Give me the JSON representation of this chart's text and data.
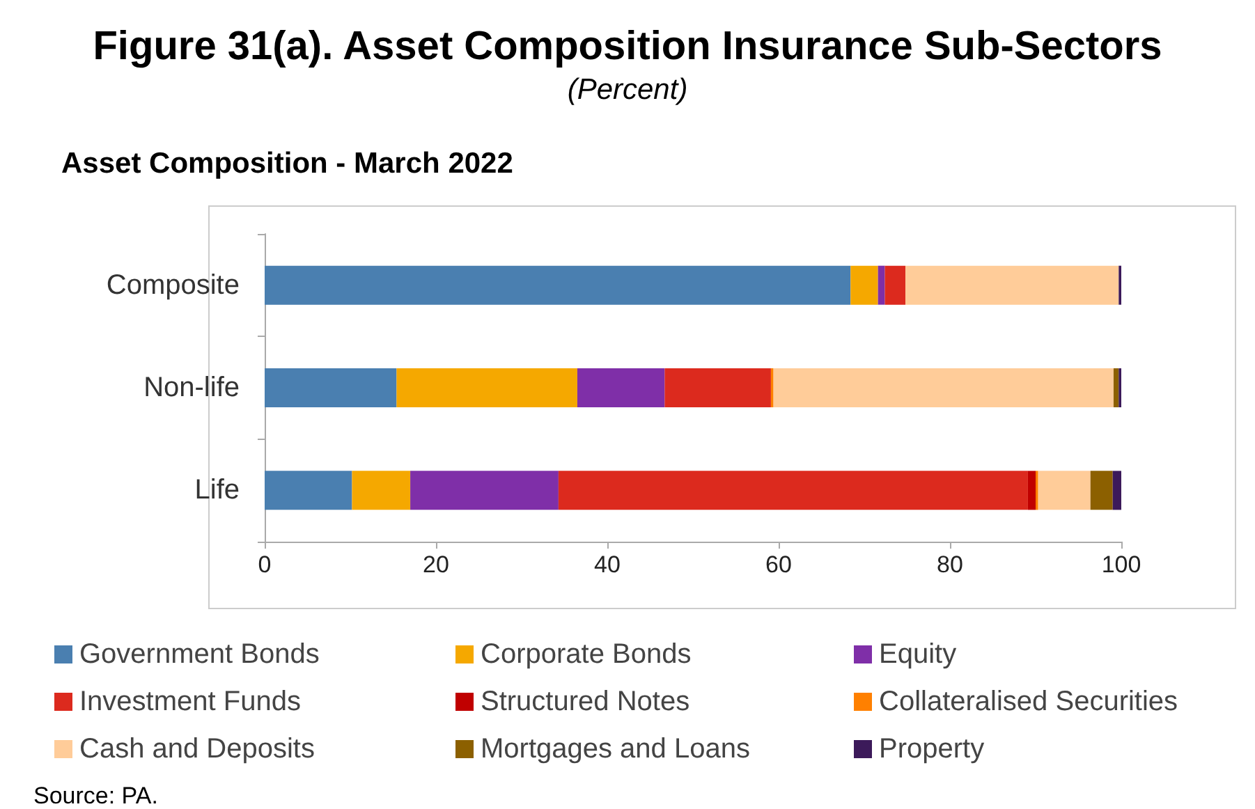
{
  "chart_data": {
    "type": "bar",
    "orientation": "horizontal",
    "stacked": true,
    "title": "Figure 31(a). Asset Composition Insurance Sub-Sectors",
    "subtitle": "(Percent)",
    "annotations": [
      "Asset Composition - March 2022",
      "Source: PA."
    ],
    "categories": [
      "Composite",
      "Non-life",
      "Life"
    ],
    "series": [
      {
        "name": "Government Bonds",
        "color": "#4a7fb0",
        "values": [
          68.4,
          15.4,
          10.2
        ]
      },
      {
        "name": "Corporate Bonds",
        "color": "#f5a800",
        "values": [
          3.2,
          21.1,
          6.8
        ]
      },
      {
        "name": "Equity",
        "color": "#7f2fa8",
        "values": [
          0.8,
          10.2,
          17.3
        ]
      },
      {
        "name": "Investment Funds",
        "color": "#dc2a1e",
        "values": [
          2.4,
          12.4,
          54.8
        ]
      },
      {
        "name": "Structured Notes",
        "color": "#c00000",
        "values": [
          0,
          0,
          0.9
        ]
      },
      {
        "name": "Collateralised Securities",
        "color": "#ff8000",
        "values": [
          0,
          0.3,
          0.3
        ]
      },
      {
        "name": "Cash and Deposits",
        "color": "#ffcc99",
        "values": [
          24.9,
          39.7,
          6.1
        ]
      },
      {
        "name": "Mortgages and Loans",
        "color": "#8c6000",
        "values": [
          0,
          0.6,
          2.6
        ]
      },
      {
        "name": "Property",
        "color": "#3c1a5a",
        "values": [
          0.3,
          0.3,
          1.0
        ]
      }
    ],
    "xlim": [
      0,
      100
    ],
    "xticks": [
      0,
      20,
      40,
      60,
      80,
      100
    ],
    "grid": false,
    "legend": "bottom"
  }
}
